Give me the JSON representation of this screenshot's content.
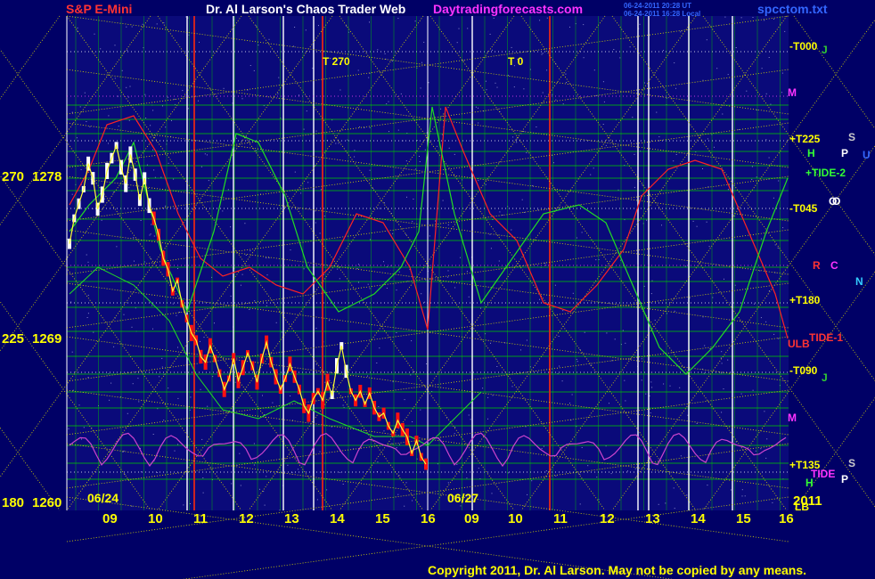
{
  "header": {
    "symbol": "S&P E-Mini",
    "title": "Dr. Al Larson's Chaos Trader Web",
    "site": "Daytradingforecasts.com",
    "stamp1": "06-24-2011 20:28 UT",
    "stamp2": "06-24-2011 16:28 Local",
    "file": "spcctom.txt"
  },
  "footer": {
    "copyright": "Copyright 2011, Dr. Al Larson. May not be copied by any means."
  },
  "colors": {
    "background": "#000066",
    "plot_bg": "#0a0a7a",
    "grid_green": "#00cc00",
    "grid_yellow": "#dddd00",
    "price_up": "#ffffff",
    "price_down": "#ff1111",
    "red_line": "#ff2222",
    "green_line": "#22dd22",
    "magenta_line": "#cc44cc",
    "text_yellow": "#ffff00"
  },
  "chart_data": {
    "type": "line",
    "title": "S&P E-Mini",
    "y_axis_labels": [
      {
        "deg": "270",
        "price": "1278"
      },
      {
        "deg": "225",
        "price": "1269"
      },
      {
        "deg": "180",
        "price": "1260"
      }
    ],
    "ylim": [
      1260,
      1278
    ],
    "x_ticks": [
      "09",
      "10",
      "11",
      "12",
      "13",
      "14",
      "15",
      "16",
      "09",
      "10",
      "11",
      "12",
      "13",
      "14",
      "15",
      "16"
    ],
    "date_labels": [
      "06/24",
      "06/27"
    ],
    "year_label": "2011",
    "right_labels": [
      {
        "text": "-T000",
        "color": "#ffff00"
      },
      {
        "text": "M",
        "color": "#ff33ff"
      },
      {
        "text": "+T225",
        "color": "#ffff00"
      },
      {
        "text": "+TIDE-2",
        "color": "#33ff33"
      },
      {
        "text": "-T045",
        "color": "#ffff00"
      },
      {
        "text": "+T180",
        "color": "#ffff00"
      },
      {
        "text": "ULB",
        "color": "#ff3333"
      },
      {
        "text": "TIDE-1",
        "color": "#ff3333"
      },
      {
        "text": "-T090",
        "color": "#ffff00"
      },
      {
        "text": "M",
        "color": "#ff33ff"
      },
      {
        "text": "+T135",
        "color": "#ffff00"
      },
      {
        "text": "TIDE",
        "color": "#ff33ff"
      },
      {
        "text": "LB",
        "color": "#ffff00"
      }
    ],
    "planet_labels": [
      "J",
      "S",
      "U",
      "H",
      "P",
      "O",
      "R",
      "C",
      "N",
      "S",
      "P",
      "O",
      "H",
      "J"
    ],
    "top_labels": [
      "T  270",
      "T  0"
    ],
    "price_series": [
      1274.2,
      1275.6,
      1276.4,
      1277.2,
      1278.6,
      1277.8,
      1276.1,
      1276.9,
      1278.2,
      1278.9,
      1279.6,
      1278.4,
      1277.5,
      1279.1,
      1278.0,
      1276.6,
      1277.8,
      1276.3,
      1275.6,
      1274.7,
      1273.4,
      1272.8,
      1271.6,
      1272.2,
      1270.9,
      1270.1,
      1269.3,
      1268.9,
      1268.0,
      1267.7,
      1268.6,
      1267.9,
      1267.1,
      1266.2,
      1266.8,
      1267.9,
      1266.7,
      1267.4,
      1268.2,
      1267.5,
      1266.6,
      1267.9,
      1268.8,
      1267.7,
      1266.9,
      1266.2,
      1266.8,
      1267.6,
      1266.9,
      1266.2,
      1265.3,
      1264.9,
      1265.7,
      1266.1,
      1265.6,
      1266.6,
      1265.9,
      1267.5,
      1268.6,
      1267.2,
      1266.1,
      1265.6,
      1266.1,
      1265.4,
      1266.0,
      1265.2,
      1264.7,
      1264.9,
      1264.2,
      1263.8,
      1264.5,
      1264.0,
      1263.6,
      1262.7,
      1263.4,
      1262.5,
      1262.1
    ]
  }
}
